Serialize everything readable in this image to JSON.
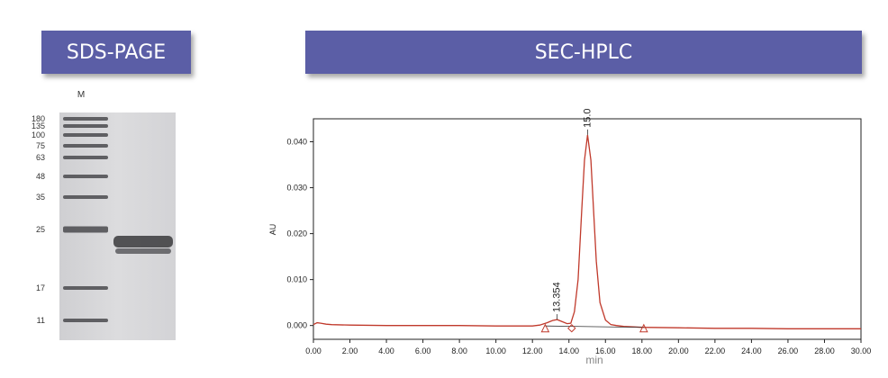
{
  "sds_page": {
    "title": "SDS-PAGE",
    "lane_label": "M",
    "marker_labels": [
      "180",
      "135",
      "100",
      "75",
      "63",
      "48",
      "35",
      "25",
      "17",
      "11"
    ]
  },
  "sec_hplc": {
    "title": "SEC-HPLC"
  },
  "chart_data": {
    "type": "line",
    "xlabel": "min",
    "ylabel": "AU",
    "xlim": [
      0,
      30
    ],
    "ylim": [
      -0.003,
      0.045
    ],
    "x_ticks": [
      "0.00",
      "2.00",
      "4.00",
      "6.00",
      "8.00",
      "10.00",
      "12.00",
      "14.00",
      "16.00",
      "18.00",
      "20.00",
      "22.00",
      "24.00",
      "26.00",
      "28.00",
      "30.00"
    ],
    "y_ticks": [
      "0.000",
      "0.010",
      "0.020",
      "0.030",
      "0.040"
    ],
    "series": [
      {
        "color": "#c0392b",
        "x": [
          0,
          0.2,
          0.4,
          0.7,
          1,
          2,
          4,
          6,
          8,
          10,
          11,
          12,
          12.4,
          12.8,
          13.1,
          13.354,
          13.6,
          13.9,
          14.1,
          14.3,
          14.5,
          14.7,
          14.85,
          15.021,
          15.2,
          15.35,
          15.5,
          15.7,
          16,
          16.3,
          16.6,
          17,
          17.5,
          18,
          20,
          22,
          24,
          26,
          28,
          30
        ],
        "y": [
          0.0002,
          0.0006,
          0.0005,
          0.0003,
          0.0002,
          0.0001,
          0.0,
          0.0,
          0.0,
          -0.0001,
          -0.0001,
          -0.0001,
          0.0001,
          0.0006,
          0.0011,
          0.0013,
          0.0009,
          0.0004,
          0.0005,
          0.003,
          0.01,
          0.025,
          0.036,
          0.0415,
          0.036,
          0.025,
          0.014,
          0.005,
          0.0012,
          0.0002,
          0.0,
          -0.0002,
          -0.0003,
          -0.0004,
          -0.0005,
          -0.0006,
          -0.0006,
          -0.0007,
          -0.0007,
          -0.0007
        ]
      }
    ],
    "peak_labels": [
      {
        "x": 13.354,
        "y": 0.0013,
        "label": "13.354"
      },
      {
        "x": 15.021,
        "y": 0.0415,
        "label": "15.021"
      }
    ],
    "baseline_markers": [
      {
        "x": 12.7,
        "shape": "triangle"
      },
      {
        "x": 14.15,
        "shape": "diamond"
      },
      {
        "x": 18.1,
        "shape": "triangle"
      }
    ],
    "grid": false
  }
}
